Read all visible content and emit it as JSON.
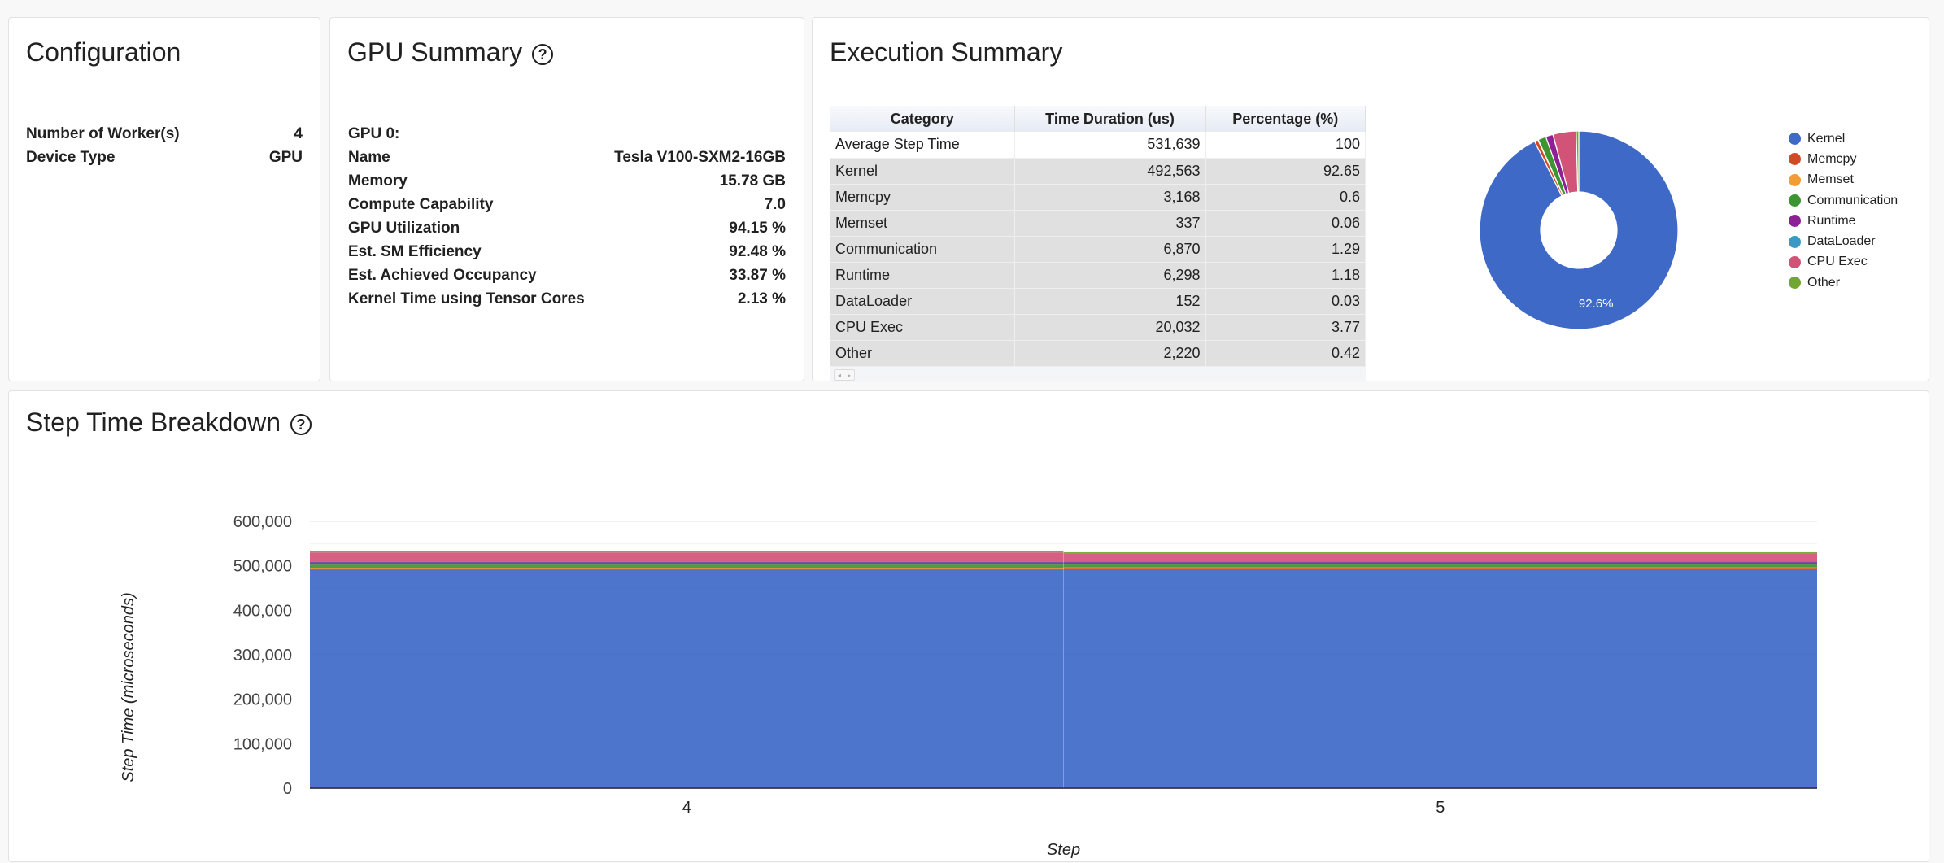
{
  "configuration": {
    "title": "Configuration",
    "rows": [
      {
        "label": "Number of Worker(s)",
        "value": "4"
      },
      {
        "label": "Device Type",
        "value": "GPU"
      }
    ]
  },
  "gpu_summary": {
    "title": "GPU Summary",
    "help_icon": "question-circle-icon",
    "rows": [
      {
        "label": "GPU 0:",
        "value": ""
      },
      {
        "label": "Name",
        "value": "Tesla V100-SXM2-16GB"
      },
      {
        "label": "Memory",
        "value": "15.78 GB"
      },
      {
        "label": "Compute Capability",
        "value": "7.0"
      },
      {
        "label": "GPU Utilization",
        "value": "94.15 %"
      },
      {
        "label": "Est. SM Efficiency",
        "value": "92.48 %"
      },
      {
        "label": "Est. Achieved Occupancy",
        "value": "33.87 %"
      },
      {
        "label": "Kernel Time using Tensor Cores",
        "value": "2.13 %"
      }
    ]
  },
  "execution_summary": {
    "title": "Execution Summary",
    "table": {
      "headers": [
        "Category",
        "Time Duration (us)",
        "Percentage (%)"
      ],
      "rows": [
        [
          "Average Step Time",
          "531,639",
          "100"
        ],
        [
          "Kernel",
          "492,563",
          "92.65"
        ],
        [
          "Memcpy",
          "3,168",
          "0.6"
        ],
        [
          "Memset",
          "337",
          "0.06"
        ],
        [
          "Communication",
          "6,870",
          "1.29"
        ],
        [
          "Runtime",
          "6,298",
          "1.18"
        ],
        [
          "DataLoader",
          "152",
          "0.03"
        ],
        [
          "CPU Exec",
          "20,032",
          "3.77"
        ],
        [
          "Other",
          "2,220",
          "0.42"
        ]
      ]
    }
  },
  "step_time_breakdown": {
    "title": "Step Time Breakdown",
    "help_icon": "question-circle-icon"
  },
  "colors": {
    "Kernel": "#3e69c7",
    "Memcpy": "#d14a25",
    "Memset": "#f39c33",
    "Communication": "#3d9432",
    "Runtime": "#8e2095",
    "DataLoader": "#3b98c5",
    "CPU Exec": "#d25378",
    "Other": "#71a631"
  },
  "chart_data": [
    {
      "type": "pie",
      "donut": true,
      "title": "",
      "categories": [
        "Kernel",
        "Memcpy",
        "Memset",
        "Communication",
        "Runtime",
        "DataLoader",
        "CPU Exec",
        "Other"
      ],
      "values": [
        492563,
        3168,
        337,
        6870,
        6298,
        152,
        20032,
        2220
      ],
      "slice_labels": [
        "92.6%",
        "",
        "",
        "",
        "",
        "",
        "",
        ""
      ],
      "legend": "right"
    },
    {
      "type": "area",
      "stacked": true,
      "stepped": true,
      "title": "",
      "xlabel": "Step",
      "ylabel": "Step Time (microseconds)",
      "x": [
        4,
        5
      ],
      "ylim": [
        0,
        600000
      ],
      "yticks": [
        "0",
        "100,000",
        "200,000",
        "300,000",
        "400,000",
        "500,000",
        "600,000"
      ],
      "xticks": [
        "4",
        "5"
      ],
      "grid": true,
      "series": [
        {
          "name": "Kernel",
          "values": [
            492000,
            493000
          ]
        },
        {
          "name": "Memcpy",
          "values": [
            3200,
            3150
          ]
        },
        {
          "name": "Memset",
          "values": [
            340,
            335
          ]
        },
        {
          "name": "Communication",
          "values": [
            7200,
            6500
          ]
        },
        {
          "name": "Runtime",
          "values": [
            6300,
            6300
          ]
        },
        {
          "name": "DataLoader",
          "values": [
            150,
            155
          ]
        },
        {
          "name": "CPU Exec",
          "values": [
            21000,
            19000
          ]
        },
        {
          "name": "Other",
          "values": [
            2300,
            2150
          ]
        }
      ]
    }
  ]
}
